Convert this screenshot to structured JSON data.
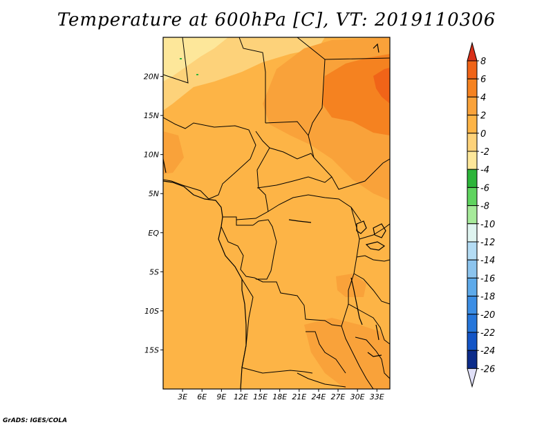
{
  "title": "Temperature at 600hPa [C], VT: 2019110306",
  "credit": "GrADS: IGES/COLA",
  "map": {
    "lon_range": [
      0,
      35
    ],
    "lat_range": [
      -20,
      25
    ],
    "lat_ticks": [
      {
        "value": 20,
        "label": "20N"
      },
      {
        "value": 15,
        "label": "15N"
      },
      {
        "value": 10,
        "label": "10N"
      },
      {
        "value": 5,
        "label": "5N"
      },
      {
        "value": 0,
        "label": "EQ"
      },
      {
        "value": -5,
        "label": "5S"
      },
      {
        "value": -10,
        "label": "10S"
      },
      {
        "value": -15,
        "label": "15S"
      }
    ],
    "lon_ticks": [
      {
        "value": 3,
        "label": "3E"
      },
      {
        "value": 6,
        "label": "6E"
      },
      {
        "value": 9,
        "label": "9E"
      },
      {
        "value": 12,
        "label": "12E"
      },
      {
        "value": 15,
        "label": "15E"
      },
      {
        "value": 18,
        "label": "18E"
      },
      {
        "value": 21,
        "label": "21E"
      },
      {
        "value": 24,
        "label": "24E"
      },
      {
        "value": 27,
        "label": "27E"
      },
      {
        "value": 30,
        "label": "30E"
      },
      {
        "value": 33,
        "label": "33E"
      }
    ],
    "field_colors": {
      "band_0_2": "#fdb446",
      "band_2_4": "#f9a23a",
      "band_4_6": "#f58220",
      "band_6_8": "#f06418",
      "band_m2_0": "#fdd27a",
      "band_m4_m2": "#fde79a"
    }
  },
  "colorbar": {
    "levels": [
      "8",
      "6",
      "4",
      "2",
      "0",
      "-2",
      "-4",
      "-6",
      "-8",
      "-10",
      "-12",
      "-14",
      "-16",
      "-18",
      "-20",
      "-22",
      "-24",
      "-26"
    ],
    "colors": [
      "#e8421a",
      "#f06418",
      "#f58220",
      "#f9a23a",
      "#fdb446",
      "#fdd27a",
      "#fde79a",
      "#2db53a",
      "#5fd45f",
      "#a6ea9a",
      "#dff4f0",
      "#b4dcf4",
      "#8cc4ee",
      "#5eaaea",
      "#3c8ee4",
      "#2676da",
      "#1455c6",
      "#0c2c8a"
    ],
    "upper_arrow_color": "#d8301a",
    "lower_arrow_color": "#e0e0f8"
  }
}
